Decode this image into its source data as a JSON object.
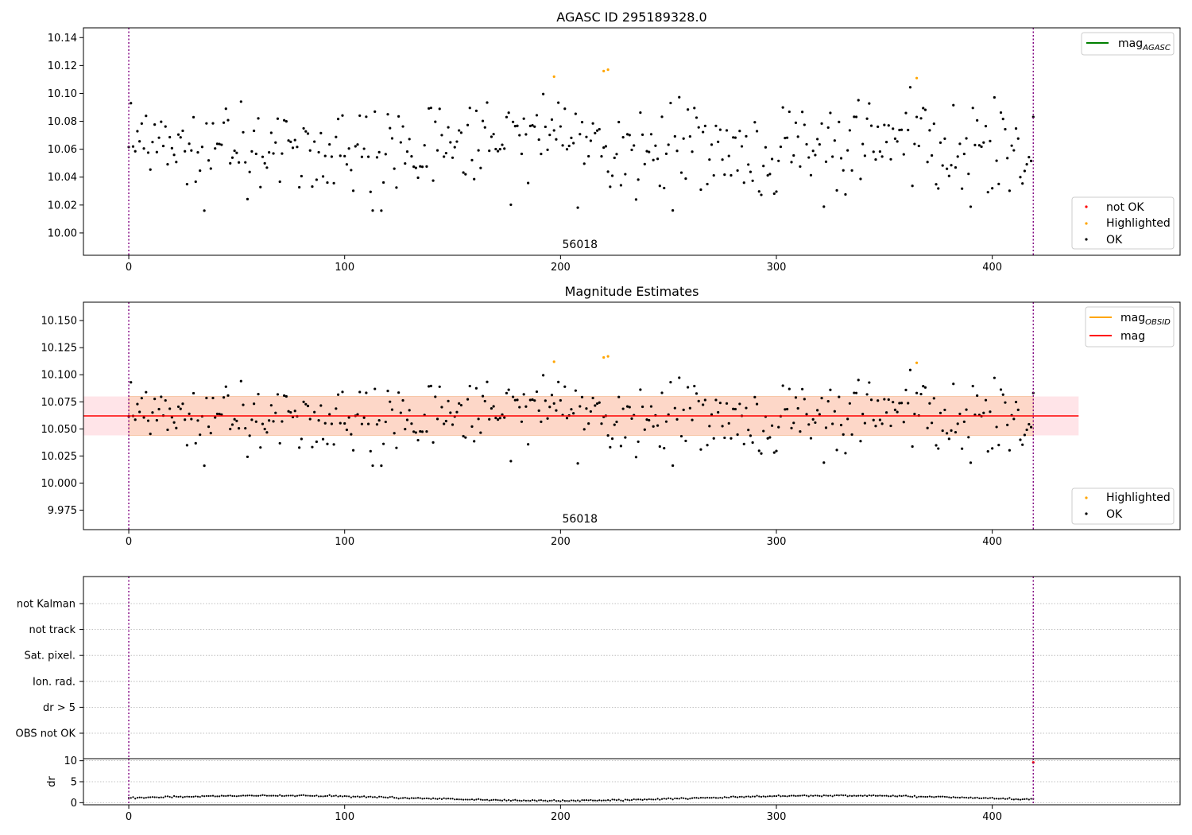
{
  "chart_data": [
    {
      "id": "agasc",
      "type": "scatter",
      "title": "AGASC ID 295189328.0",
      "xlim": [
        -21,
        487
      ],
      "ylim": [
        9.984,
        10.147
      ],
      "x_ticks": [
        0,
        100,
        200,
        300,
        400
      ],
      "y_ticks": [
        10.0,
        10.02,
        10.04,
        10.06,
        10.08,
        10.1,
        10.12,
        10.14
      ],
      "y_tick_decimals": 2,
      "obsid_label": {
        "text": "56018",
        "x": 209
      },
      "obsid_boundaries": [
        0,
        419
      ],
      "legend_upper": [
        {
          "label": "mag",
          "sub": "AGASC",
          "color": "#008000"
        }
      ],
      "legend_lower": [
        {
          "label": "not OK",
          "color": "#ff0000"
        },
        {
          "label": "Highlighted",
          "color": "#ffa500"
        },
        {
          "label": "OK",
          "color": "#000000"
        }
      ],
      "highlighted_points": [
        [
          197,
          10.112
        ],
        [
          220,
          10.116
        ],
        [
          222,
          10.117
        ],
        [
          365,
          10.111
        ]
      ]
    },
    {
      "id": "mag_estimates",
      "type": "scatter",
      "title": "Magnitude Estimates",
      "xlim": [
        -21,
        487
      ],
      "ylim": [
        9.957,
        10.167
      ],
      "x_ticks": [
        0,
        100,
        200,
        300,
        400
      ],
      "y_ticks": [
        9.975,
        10.0,
        10.025,
        10.05,
        10.075,
        10.1,
        10.125,
        10.15
      ],
      "y_tick_decimals": 3,
      "obsid_label": {
        "text": "56018",
        "x": 209
      },
      "obsid_boundaries": [
        0,
        419
      ],
      "mag_line": {
        "value": 10.062,
        "x_range": [
          -21,
          440
        ]
      },
      "mag_band": {
        "low": 10.044,
        "high": 10.08,
        "x_range": [
          -21,
          440
        ]
      },
      "mag_obsid_band": {
        "low": 10.044,
        "high": 10.08,
        "x_range": [
          0,
          419
        ]
      },
      "legend_upper": [
        {
          "label": "mag",
          "sub": "OBSID",
          "color": "#ffa500"
        },
        {
          "label": "mag",
          "sub": "",
          "color": "#ff0000"
        }
      ],
      "legend_lower": [
        {
          "label": "Highlighted",
          "color": "#ffa500"
        },
        {
          "label": "OK",
          "color": "#000000"
        }
      ],
      "highlighted_points": [
        [
          197,
          10.112
        ],
        [
          220,
          10.116
        ],
        [
          222,
          10.117
        ],
        [
          365,
          10.111
        ]
      ]
    },
    {
      "id": "flags",
      "type": "scatter",
      "xlim": [
        -21,
        487
      ],
      "categories": [
        "not Kalman",
        "not track",
        "Sat. pixel.",
        "Ion. rad.",
        "dr > 5",
        "OBS not OK"
      ],
      "obsid_boundaries": [
        0,
        419
      ]
    },
    {
      "id": "dr",
      "type": "scatter",
      "ylabel": "dr",
      "xlim": [
        -21,
        487
      ],
      "ylim": [
        -0.5,
        10.5
      ],
      "x_ticks": [
        0,
        100,
        200,
        300,
        400
      ],
      "y_ticks": [
        0,
        5,
        10
      ],
      "obsid_boundaries": [
        0,
        419
      ],
      "red_points": [
        [
          419,
          9.6
        ]
      ]
    }
  ],
  "series": {
    "n_points": 420,
    "ok_color": "#000000",
    "highlight_color": "#ffa500",
    "not_ok_color": "#ff0000",
    "mag_approx_range": [
      10.016,
      10.109
    ],
    "dr_approx_range": [
      0.0,
      2.0
    ]
  },
  "colors": {
    "boundary": "#800080",
    "mag_line": "#ff0000",
    "band_outer": "#ffe4e8",
    "band_inner": "#fdd7c8",
    "grid": "#b0b0b0"
  }
}
